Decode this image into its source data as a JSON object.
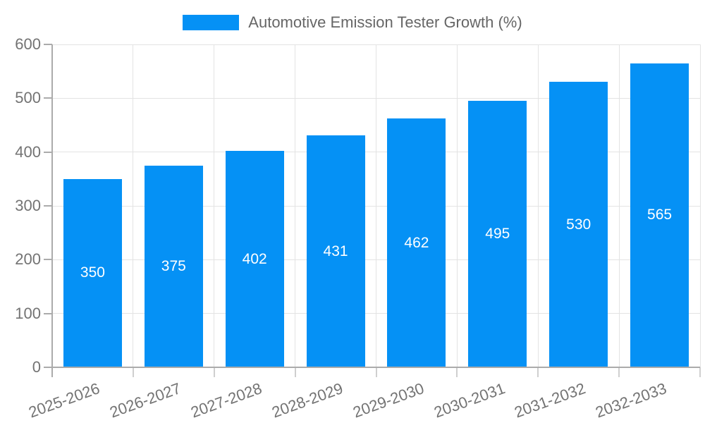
{
  "legend": {
    "label": "Automotive Emission Tester Growth (%)"
  },
  "chart_data": {
    "type": "bar",
    "title": "Automotive Emission Tester Growth (%)",
    "xlabel": "",
    "ylabel": "",
    "categories": [
      "2025-2026",
      "2026-2027",
      "2027-2028",
      "2028-2029",
      "2029-2030",
      "2030-2031",
      "2031-2032",
      "2032-2033"
    ],
    "values": [
      350,
      375,
      402,
      431,
      462,
      495,
      530,
      565
    ],
    "value_labels": [
      "350",
      "375",
      "402",
      "431",
      "462",
      "495",
      "530",
      "565"
    ],
    "ylim": [
      0,
      600
    ],
    "yticks": [
      0,
      100,
      200,
      300,
      400,
      500,
      600
    ],
    "grid": true,
    "legend_position": "top-center",
    "value_label_position": "inside-center",
    "colors": {
      "bar": "#0591F5",
      "value_label_text": "#FFFFFF",
      "legend_text": "#666666",
      "axis_text": "#737373",
      "axis_line": "#ABABAB",
      "grid_line": "#E3E3E3",
      "tick_x": "#CFCFCF",
      "background": "#FFFFFF"
    }
  }
}
